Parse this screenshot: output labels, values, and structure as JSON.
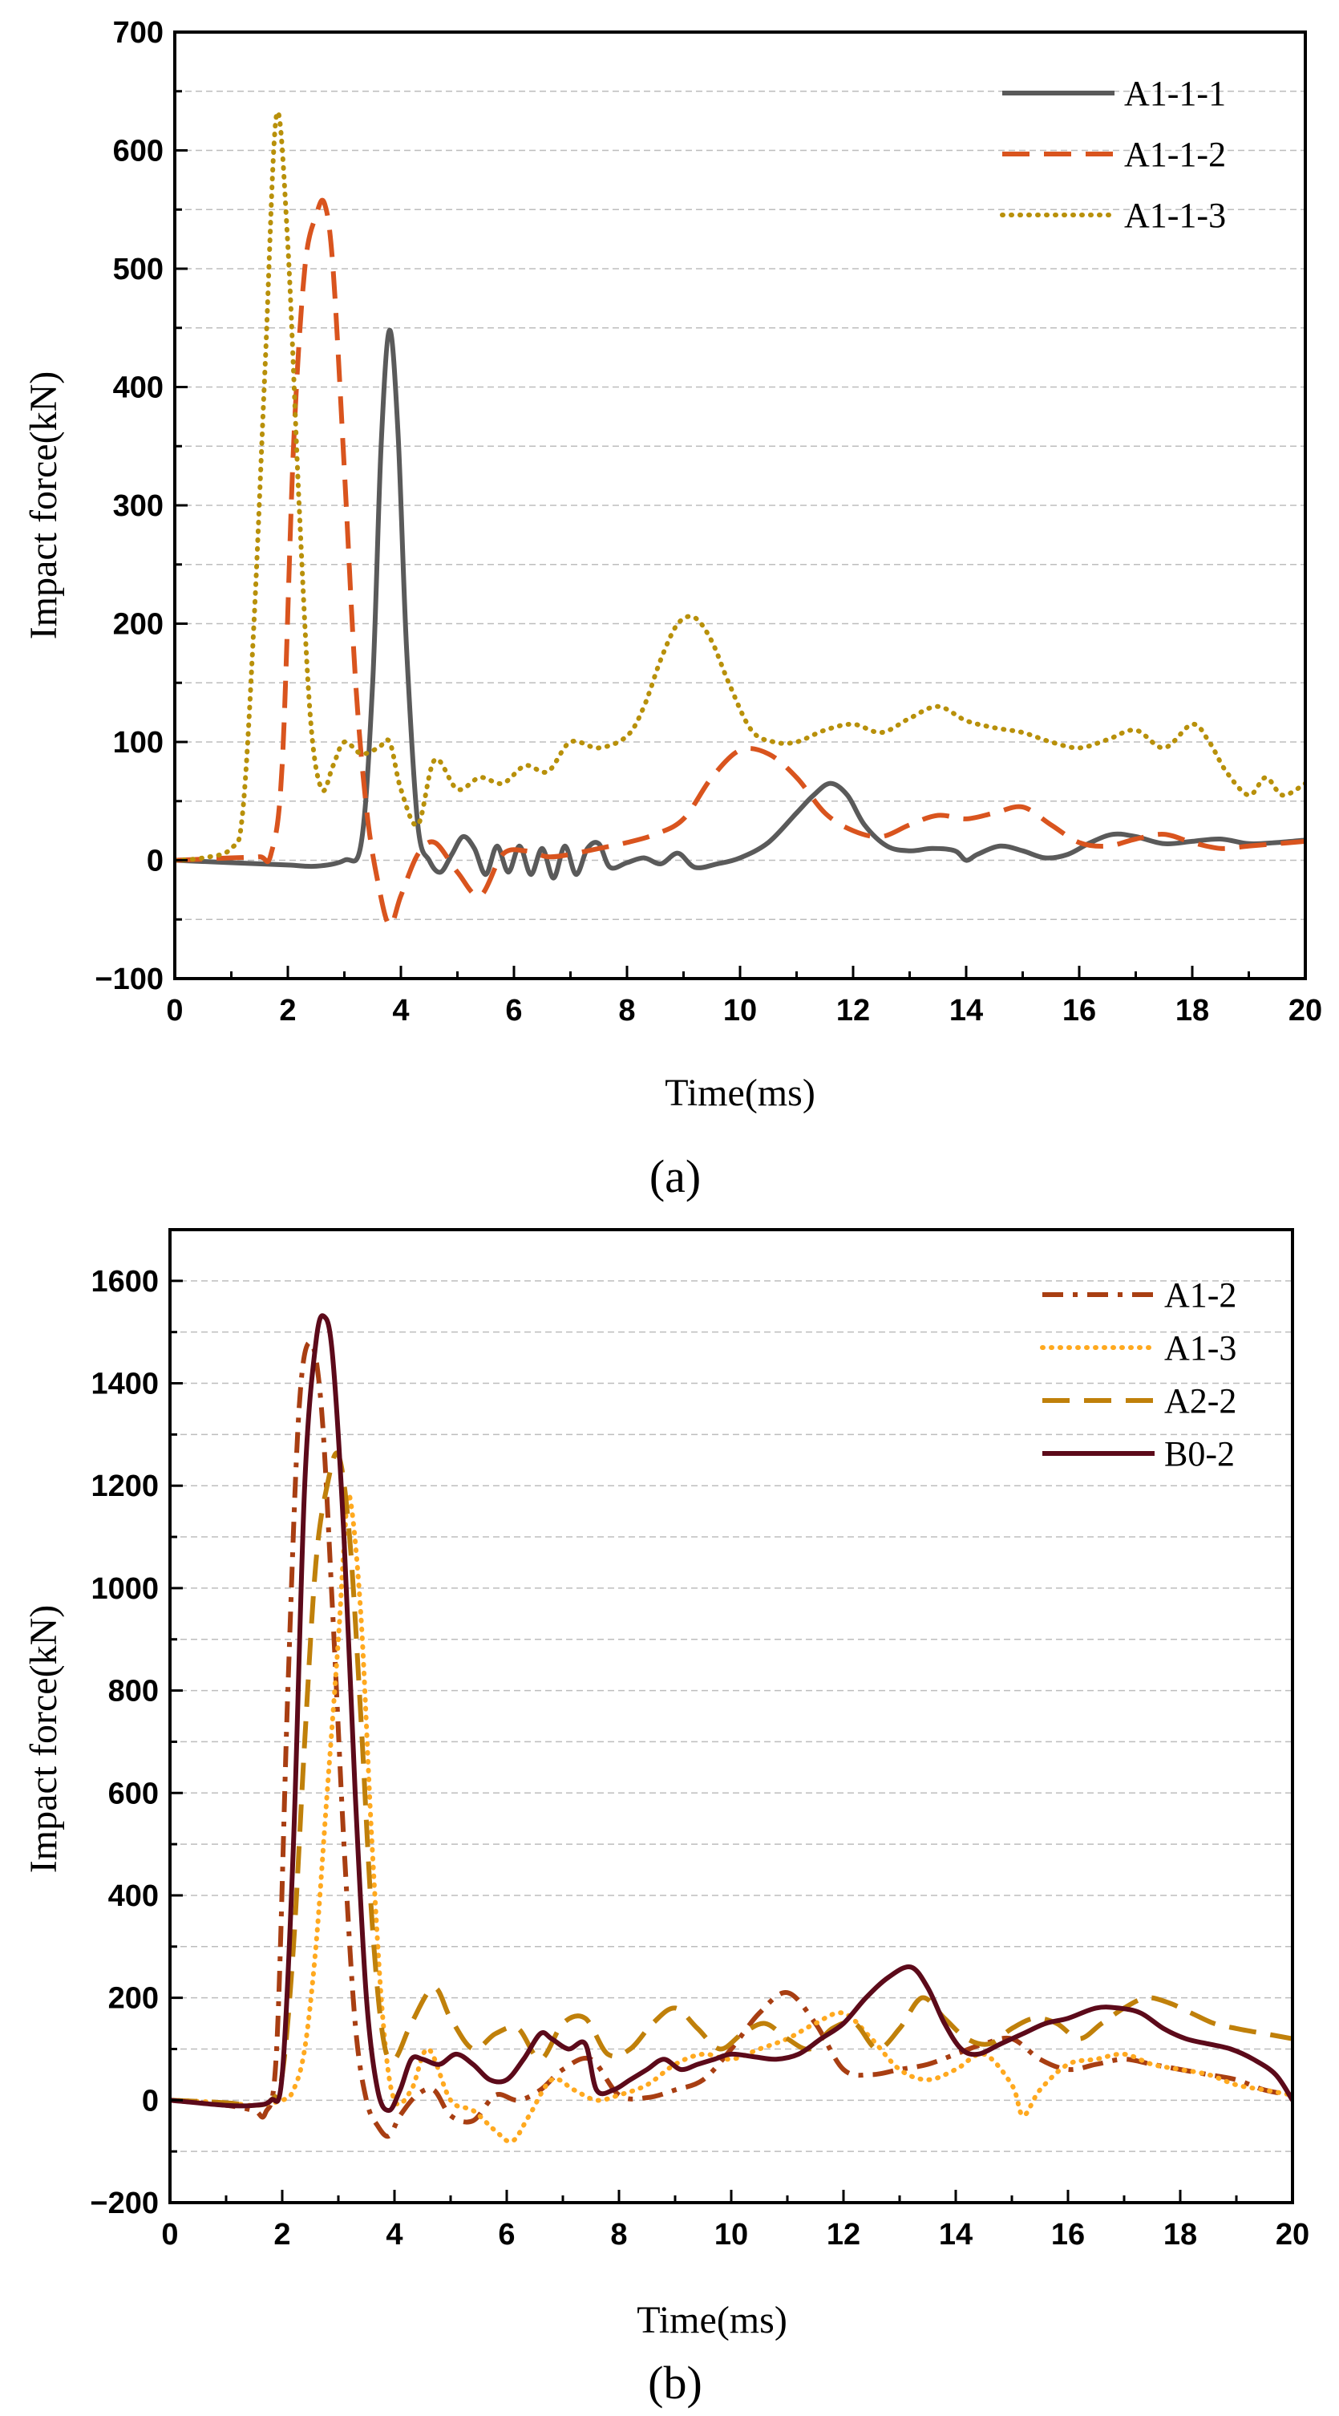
{
  "figure": {
    "panel_labels": [
      "(a)",
      "(b)"
    ]
  },
  "chart_data": [
    {
      "id": "a",
      "type": "line",
      "panel_label": "a",
      "title": "",
      "xlabel": "Time(ms)",
      "ylabel": "Impact force(kN)",
      "xlim": [
        0,
        20
      ],
      "ylim": [
        -100,
        700
      ],
      "xticks": [
        0,
        2,
        4,
        6,
        8,
        10,
        12,
        14,
        16,
        18,
        20
      ],
      "yticks": [
        -100,
        0,
        100,
        200,
        300,
        400,
        500,
        600,
        700
      ],
      "grid": true,
      "legend_position": "top-right",
      "series": [
        {
          "name": "A1-1-1",
          "color": "#5a5a5a",
          "style": "solid",
          "x": [
            0,
            1,
            2,
            2.5,
            3,
            3.3,
            3.5,
            3.65,
            3.8,
            3.95,
            4.1,
            4.3,
            4.5,
            4.7,
            4.9,
            5.1,
            5.3,
            5.5,
            5.7,
            5.9,
            6.1,
            6.3,
            6.5,
            6.7,
            6.9,
            7.1,
            7.3,
            7.5,
            7.7,
            8,
            8.3,
            8.6,
            8.9,
            9.2,
            9.6,
            10,
            10.5,
            11,
            11.3,
            11.6,
            11.9,
            12.2,
            12.6,
            13,
            13.4,
            13.8,
            14,
            14.2,
            14.6,
            15,
            15.4,
            15.8,
            16.2,
            16.6,
            17,
            17.5,
            18,
            18.5,
            19,
            19.5,
            20
          ],
          "y": [
            0,
            -2,
            -4,
            -5,
            0,
            15,
            150,
            350,
            448,
            360,
            180,
            30,
            0,
            -10,
            5,
            20,
            10,
            -12,
            12,
            -10,
            12,
            -12,
            10,
            -15,
            12,
            -12,
            10,
            14,
            -6,
            -2,
            2,
            -3,
            6,
            -6,
            -3,
            2,
            15,
            40,
            55,
            65,
            55,
            30,
            12,
            8,
            10,
            8,
            0,
            5,
            12,
            8,
            2,
            5,
            15,
            22,
            20,
            14,
            16,
            18,
            14,
            15,
            17
          ]
        },
        {
          "name": "A1-1-2",
          "color": "#d9541e",
          "style": "dashed",
          "x": [
            0,
            1,
            1.5,
            1.7,
            1.9,
            2.1,
            2.3,
            2.5,
            2.65,
            2.8,
            3,
            3.2,
            3.4,
            3.6,
            3.8,
            4,
            4.3,
            4.6,
            5,
            5.4,
            5.8,
            6.2,
            6.6,
            7,
            7.5,
            8,
            8.5,
            9,
            9.5,
            10,
            10.5,
            11,
            11.5,
            12,
            12.5,
            13,
            13.5,
            14,
            14.5,
            15,
            15.5,
            16,
            16.5,
            17,
            17.5,
            18,
            18.5,
            19,
            19.5,
            20
          ],
          "y": [
            0,
            2,
            3,
            5,
            80,
            350,
            500,
            545,
            555,
            500,
            330,
            150,
            40,
            -20,
            -55,
            -30,
            5,
            15,
            -10,
            -30,
            5,
            8,
            3,
            5,
            10,
            15,
            22,
            35,
            70,
            93,
            90,
            70,
            40,
            25,
            20,
            30,
            38,
            35,
            40,
            45,
            30,
            15,
            12,
            18,
            22,
            15,
            10,
            12,
            14,
            16
          ]
        },
        {
          "name": "A1-1-3",
          "color": "#b8900a",
          "style": "dotted",
          "x": [
            0,
            0.5,
            1,
            1.2,
            1.4,
            1.6,
            1.8,
            2,
            2.2,
            2.4,
            2.6,
            2.8,
            3,
            3.3,
            3.6,
            3.8,
            4,
            4.3,
            4.6,
            5,
            5.4,
            5.8,
            6.2,
            6.6,
            7,
            7.5,
            8,
            8.3,
            8.6,
            8.9,
            9.2,
            9.5,
            9.8,
            10.2,
            10.6,
            11,
            11.5,
            12,
            12.5,
            13,
            13.5,
            14,
            14.5,
            15,
            15.5,
            16,
            16.5,
            17,
            17.5,
            18,
            18.3,
            18.6,
            19,
            19.3,
            19.6,
            20
          ],
          "y": [
            0,
            2,
            10,
            40,
            200,
            420,
            630,
            520,
            300,
            120,
            60,
            80,
            100,
            90,
            95,
            100,
            60,
            30,
            85,
            60,
            70,
            65,
            80,
            75,
            100,
            95,
            105,
            130,
            170,
            200,
            205,
            185,
            150,
            110,
            100,
            100,
            110,
            115,
            108,
            120,
            130,
            118,
            112,
            108,
            100,
            95,
            102,
            110,
            95,
            115,
            100,
            75,
            55,
            70,
            55,
            65
          ]
        }
      ]
    },
    {
      "id": "b",
      "type": "line",
      "panel_label": "b",
      "title": "",
      "xlabel": "Time(ms)",
      "ylabel": "Impact force(kN)",
      "xlim": [
        0,
        20
      ],
      "ylim": [
        -200,
        1700
      ],
      "xticks": [
        0,
        2,
        4,
        6,
        8,
        10,
        12,
        14,
        16,
        18,
        20
      ],
      "yticks": [
        -200,
        0,
        200,
        400,
        600,
        800,
        1000,
        1200,
        1400,
        1600
      ],
      "grid": true,
      "legend_position": "top-right",
      "series": [
        {
          "name": "A1-2",
          "color": "#a83e12",
          "style": "dash-dot",
          "x": [
            0,
            1,
            1.5,
            1.7,
            1.9,
            2.1,
            2.3,
            2.5,
            2.7,
            2.9,
            3.1,
            3.3,
            3.5,
            3.7,
            3.9,
            4.1,
            4.4,
            4.7,
            5,
            5.4,
            5.8,
            6.2,
            6.6,
            7,
            7.5,
            8,
            8.5,
            9,
            9.5,
            10,
            10.5,
            11,
            11.5,
            12,
            12.5,
            13,
            13.5,
            14,
            14.5,
            15,
            15.5,
            16,
            16.5,
            17,
            17.5,
            18,
            18.5,
            19,
            19.5,
            20
          ],
          "y": [
            0,
            -10,
            -20,
            -25,
            100,
            800,
            1350,
            1480,
            1350,
            950,
            500,
            150,
            0,
            -50,
            -70,
            -30,
            10,
            20,
            -30,
            -40,
            10,
            0,
            20,
            60,
            80,
            10,
            5,
            20,
            40,
            100,
            170,
            210,
            150,
            60,
            50,
            60,
            70,
            90,
            110,
            120,
            80,
            60,
            70,
            80,
            70,
            60,
            50,
            40,
            20,
            10
          ]
        },
        {
          "name": "A1-3",
          "color": "#ffa91f",
          "style": "dotted",
          "x": [
            0,
            1,
            1.5,
            2,
            2.2,
            2.4,
            2.6,
            2.8,
            3,
            3.1,
            3.2,
            3.4,
            3.6,
            3.8,
            4,
            4.3,
            4.6,
            5,
            5.4,
            5.8,
            6.1,
            6.4,
            6.8,
            7.2,
            7.6,
            8,
            8.5,
            9,
            9.5,
            10,
            10.5,
            11,
            11.5,
            12,
            12.5,
            13,
            13.5,
            14,
            14.5,
            15,
            15.2,
            15.5,
            16,
            16.5,
            17,
            17.5,
            18,
            18.5,
            19,
            19.5,
            20
          ],
          "y": [
            0,
            -5,
            -10,
            0,
            20,
            100,
            300,
            600,
            900,
            1080,
            1180,
            950,
            500,
            150,
            0,
            20,
            100,
            0,
            -20,
            -60,
            -80,
            -30,
            40,
            20,
            0,
            10,
            30,
            70,
            90,
            80,
            100,
            120,
            150,
            170,
            120,
            60,
            40,
            60,
            90,
            30,
            -30,
            20,
            70,
            80,
            90,
            70,
            60,
            50,
            30,
            20,
            10
          ]
        },
        {
          "name": "A2-2",
          "color": "#c0800a",
          "style": "dashed",
          "x": [
            0,
            1,
            1.5,
            1.8,
            2,
            2.2,
            2.4,
            2.6,
            2.8,
            3,
            3.2,
            3.4,
            3.6,
            3.8,
            4,
            4.3,
            4.7,
            5,
            5.4,
            5.8,
            6.2,
            6.6,
            7,
            7.4,
            7.8,
            8.2,
            8.6,
            9,
            9.4,
            9.8,
            10.2,
            10.6,
            11,
            11.4,
            11.8,
            12.2,
            12.6,
            13,
            13.4,
            13.8,
            14.2,
            14.6,
            15,
            15.4,
            15.8,
            16.2,
            16.6,
            17,
            17.4,
            17.8,
            18.2,
            18.6,
            19,
            19.5,
            20
          ],
          "y": [
            0,
            -5,
            -10,
            0,
            50,
            300,
            700,
            1050,
            1200,
            1260,
            1100,
            750,
            350,
            120,
            80,
            150,
            220,
            160,
            100,
            130,
            140,
            80,
            150,
            160,
            90,
            100,
            150,
            180,
            140,
            100,
            130,
            150,
            120,
            100,
            140,
            150,
            100,
            140,
            200,
            160,
            120,
            110,
            140,
            160,
            150,
            120,
            150,
            180,
            200,
            190,
            170,
            150,
            140,
            130,
            120
          ]
        },
        {
          "name": "B0-2",
          "color": "#5c0a1a",
          "style": "solid",
          "x": [
            0,
            1,
            1.5,
            1.8,
            2,
            2.2,
            2.4,
            2.6,
            2.75,
            2.9,
            3.1,
            3.3,
            3.5,
            3.7,
            3.9,
            4.1,
            4.3,
            4.5,
            4.8,
            5.1,
            5.4,
            5.7,
            6,
            6.3,
            6.6,
            6.8,
            7.1,
            7.4,
            7.6,
            7.9,
            8.2,
            8.5,
            8.8,
            9.1,
            9.4,
            9.7,
            10,
            10.4,
            10.8,
            11.2,
            11.6,
            12,
            12.4,
            12.8,
            13.2,
            13.5,
            13.8,
            14.1,
            14.4,
            14.8,
            15.2,
            15.6,
            16,
            16.5,
            16.9,
            17.3,
            17.7,
            18.1,
            18.5,
            18.9,
            19.3,
            19.7,
            20
          ],
          "y": [
            0,
            -10,
            -10,
            0,
            50,
            500,
            1200,
            1480,
            1530,
            1450,
            1100,
            600,
            200,
            20,
            -20,
            20,
            80,
            80,
            70,
            90,
            70,
            40,
            40,
            80,
            130,
            120,
            100,
            110,
            20,
            20,
            40,
            60,
            80,
            60,
            70,
            80,
            90,
            85,
            80,
            90,
            120,
            150,
            200,
            240,
            260,
            220,
            150,
            100,
            90,
            110,
            130,
            150,
            160,
            180,
            180,
            170,
            140,
            120,
            110,
            100,
            80,
            50,
            0
          ]
        }
      ]
    }
  ]
}
